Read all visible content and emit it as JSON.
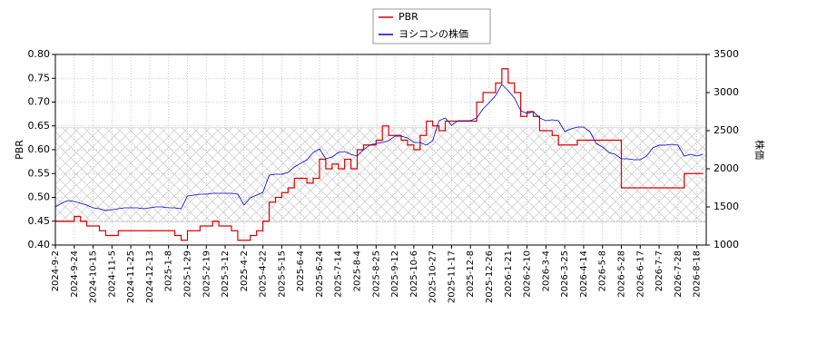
{
  "chart_data": {
    "type": "line",
    "ylabel": "PBR",
    "y2label": "株価",
    "categories": [
      "2024-9-2",
      null,
      null,
      "2024-9-24",
      null,
      null,
      "2024-10-15",
      null,
      null,
      "2024-11-5",
      null,
      null,
      "2024-11-25",
      null,
      null,
      "2024-12-13",
      null,
      null,
      "2025-1-8",
      null,
      null,
      "2025-1-29",
      null,
      null,
      "2025-2-19",
      null,
      null,
      "2025-3-12",
      null,
      null,
      "2025-4-2",
      null,
      null,
      "2025-4-22",
      null,
      null,
      "2025-5-15",
      null,
      null,
      "2025-6-4",
      null,
      null,
      "2025-6-24",
      null,
      null,
      "2025-7-14",
      null,
      null,
      "2025-8-4",
      null,
      null,
      "2025-8-25",
      null,
      null,
      "2025-9-12",
      null,
      null,
      "2025-10-6",
      null,
      null,
      "2025-10-27",
      null,
      null,
      "2025-11-17",
      null,
      null,
      "2025-12-8",
      null,
      null,
      "2025-12-26",
      null,
      null,
      "2026-1-21",
      null,
      null,
      "2026-2-10",
      null,
      null,
      "2026-3-4",
      null,
      null,
      "2026-3-25",
      null,
      null,
      "2026-4-14",
      null,
      null,
      "2026-5-8",
      null,
      null,
      "2026-5-28",
      null,
      null,
      "2026-6-17",
      null,
      null,
      "2026-7-7",
      null,
      null,
      "2026-7-28",
      null,
      null,
      "2026-8-18",
      null
    ],
    "series": [
      {
        "name": "PBR",
        "color": "#dd0000",
        "step": true,
        "values": [
          0.45,
          0.45,
          0.45,
          0.46,
          0.45,
          0.44,
          0.44,
          0.43,
          0.42,
          0.42,
          0.43,
          0.43,
          0.43,
          0.43,
          0.43,
          0.43,
          0.43,
          0.43,
          0.43,
          0.42,
          0.41,
          0.43,
          0.43,
          0.44,
          0.44,
          0.45,
          0.44,
          0.44,
          0.43,
          0.41,
          0.41,
          0.42,
          0.43,
          0.45,
          0.49,
          0.5,
          0.51,
          0.52,
          0.54,
          0.54,
          0.53,
          0.54,
          0.58,
          0.56,
          0.57,
          0.56,
          0.58,
          0.56,
          0.6,
          0.61,
          0.61,
          0.62,
          0.65,
          0.63,
          0.63,
          0.62,
          0.61,
          0.6,
          0.63,
          0.66,
          0.65,
          0.64,
          0.66,
          0.66,
          0.66,
          0.66,
          0.66,
          0.7,
          0.72,
          0.72,
          0.74,
          0.77,
          0.74,
          0.72,
          0.67,
          0.68,
          0.67,
          0.64,
          0.64,
          0.63,
          0.61,
          0.61,
          0.61,
          0.62,
          0.62,
          0.62,
          0.62,
          0.62,
          0.62,
          0.62,
          0.52,
          0.52,
          0.52,
          0.52,
          0.52,
          0.52,
          0.52,
          0.52,
          0.52,
          0.52,
          0.55,
          0.55,
          0.55,
          0.55
        ]
      },
      {
        "name": "ヨシコンの株価",
        "color": "#0000cc",
        "axis": "y2",
        "values": [
          1500,
          1548,
          1583,
          1571,
          1548,
          1524,
          1488,
          1476,
          1452,
          1464,
          1476,
          1488,
          1488,
          1488,
          1476,
          1488,
          1500,
          1500,
          1488,
          1488,
          1476,
          1643,
          1655,
          1667,
          1667,
          1679,
          1679,
          1679,
          1679,
          1667,
          1524,
          1619,
          1655,
          1690,
          1917,
          1929,
          1929,
          1952,
          2024,
          2071,
          2119,
          2214,
          2262,
          2131,
          2155,
          2214,
          2226,
          2190,
          2167,
          2250,
          2310,
          2333,
          2345,
          2369,
          2429,
          2429,
          2405,
          2345,
          2345,
          2310,
          2369,
          2631,
          2667,
          2571,
          2631,
          2631,
          2631,
          2667,
          2786,
          2869,
          2960,
          3107,
          3024,
          2929,
          2762,
          2726,
          2750,
          2667,
          2631,
          2643,
          2631,
          2488,
          2524,
          2548,
          2548,
          2488,
          2333,
          2286,
          2214,
          2190,
          2131,
          2131,
          2119,
          2119,
          2167,
          2274,
          2310,
          2310,
          2321,
          2310,
          2167,
          2190,
          2167,
          2190
        ]
      }
    ],
    "ylim": [
      0.4,
      0.8
    ],
    "yticks": [
      {
        "value": 0.4,
        "label": "0.40"
      },
      {
        "value": 0.45,
        "label": "0.45"
      },
      {
        "value": 0.5,
        "label": "0.50"
      },
      {
        "value": 0.55,
        "label": "0.55"
      },
      {
        "value": 0.6,
        "label": "0.60"
      },
      {
        "value": 0.65,
        "label": "0.65"
      },
      {
        "value": 0.7,
        "label": "0.70"
      },
      {
        "value": 0.75,
        "label": "0.75"
      },
      {
        "value": 0.8,
        "label": "0.80"
      }
    ],
    "y2lim": [
      1000,
      3500
    ],
    "y2ticks": [
      1000,
      1500,
      2000,
      2500,
      3000,
      3500
    ],
    "shaded_range": [
      0.448,
      0.646
    ],
    "grid": true,
    "legend": "top"
  }
}
